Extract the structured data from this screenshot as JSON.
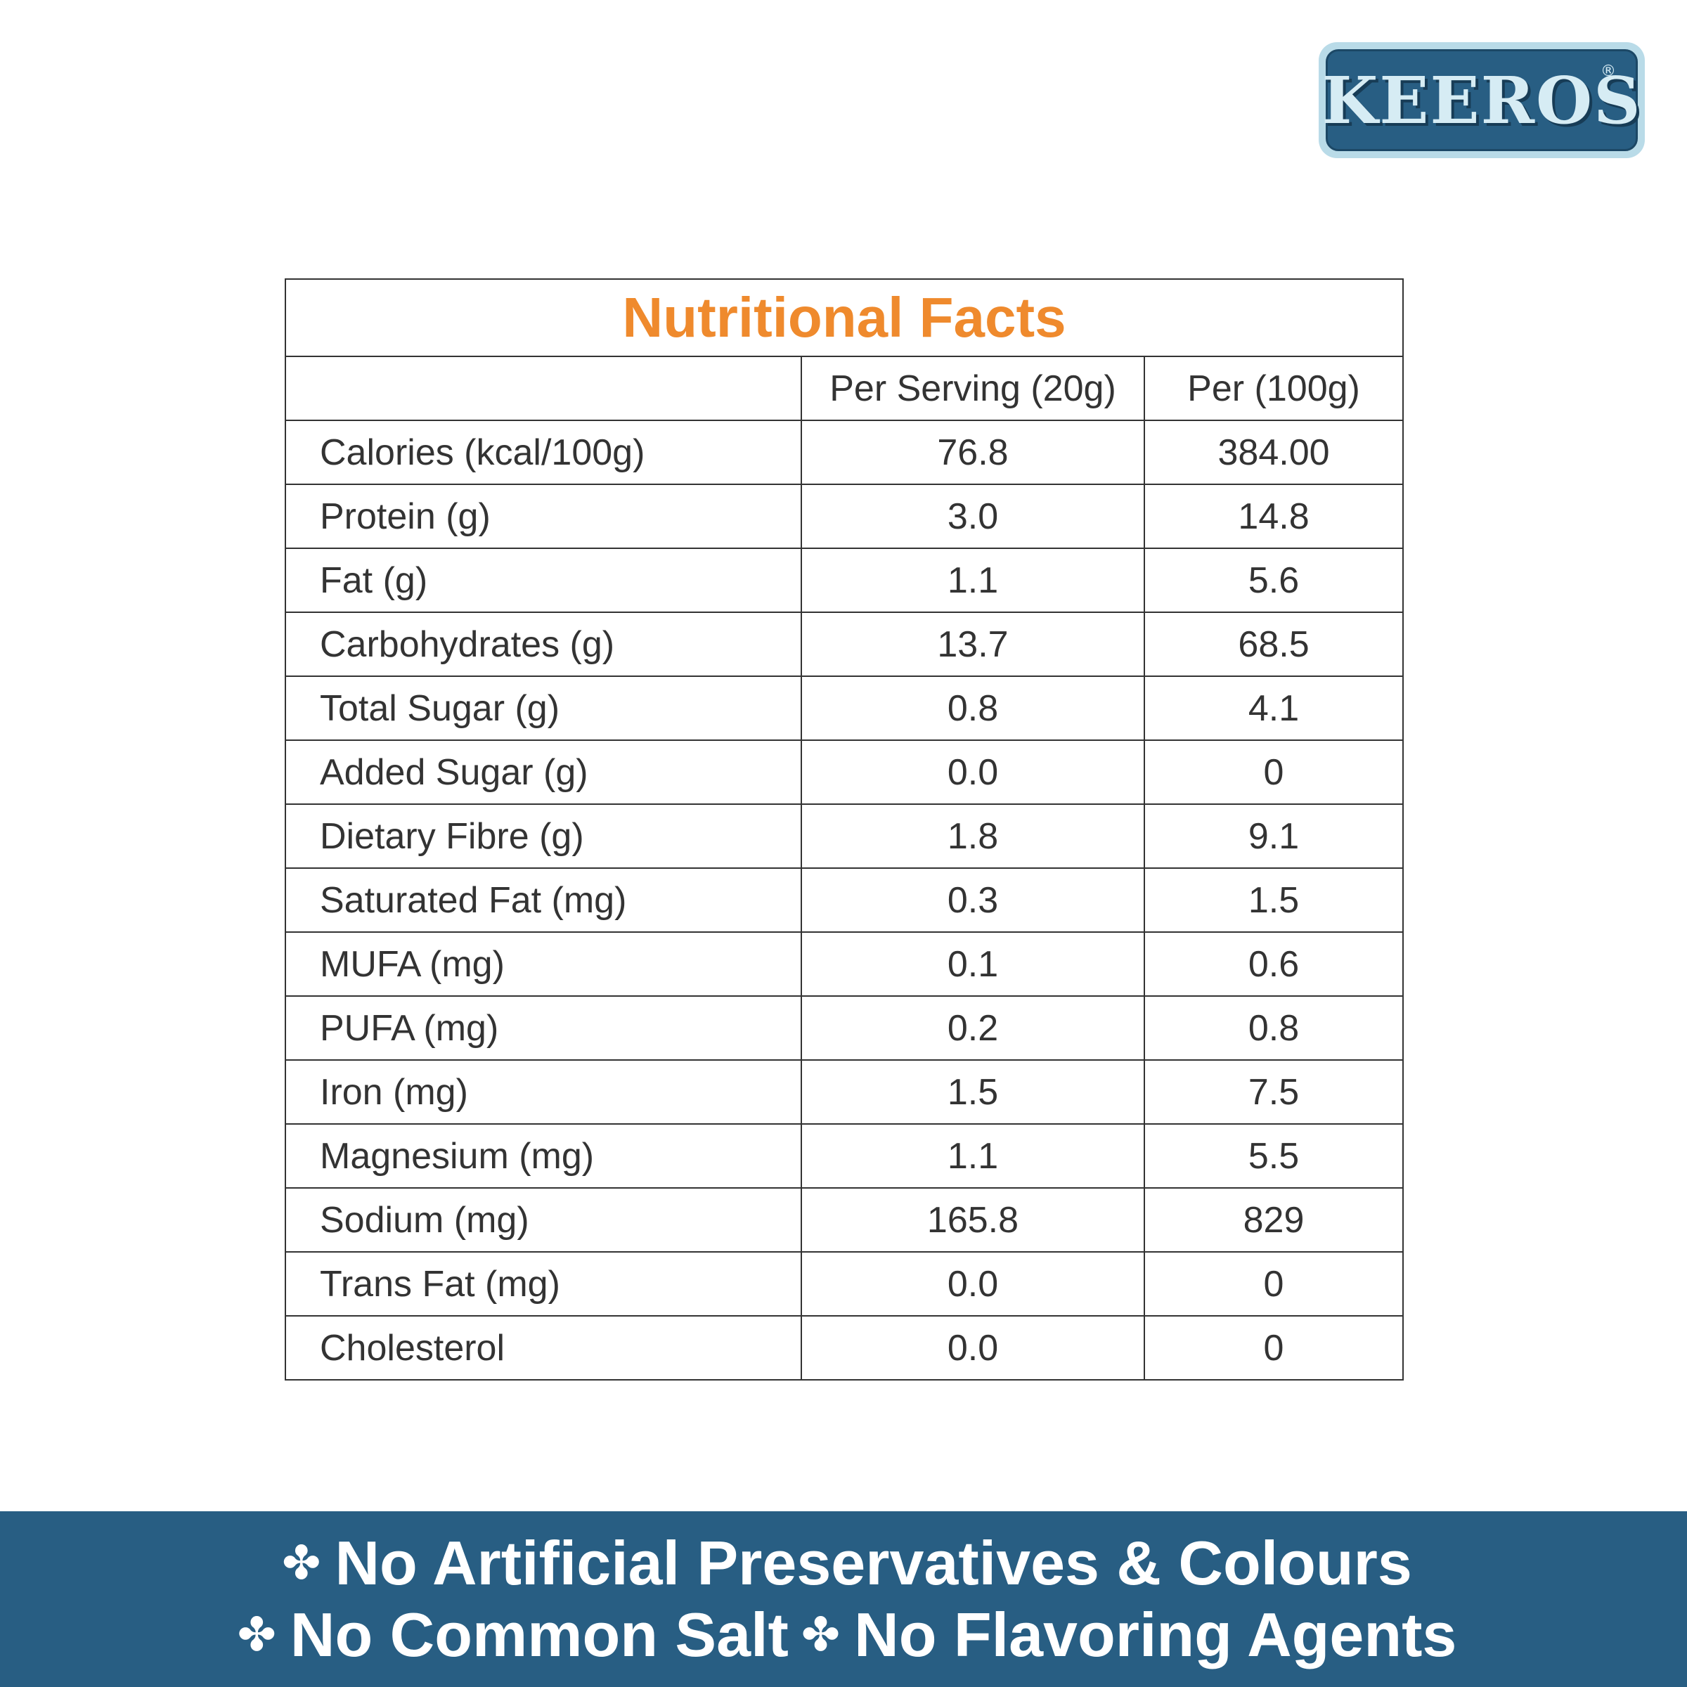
{
  "brand": {
    "logo_text": "KEEROS",
    "registered_mark": "®",
    "colors": {
      "navy": "#285e83",
      "light_blue": "#b9dbe8",
      "orange": "#ef8a2d"
    }
  },
  "table": {
    "title": "Nutritional Facts",
    "headers": [
      "",
      "Per Serving (20g)",
      "Per (100g)"
    ],
    "rows": [
      {
        "name": "Calories (kcal/100g)",
        "per_serving": "76.8",
        "per_100g": "384.00"
      },
      {
        "name": "Protein (g)",
        "per_serving": "3.0",
        "per_100g": "14.8"
      },
      {
        "name": "Fat (g)",
        "per_serving": "1.1",
        "per_100g": "5.6"
      },
      {
        "name": "Carbohydrates (g)",
        "per_serving": "13.7",
        "per_100g": "68.5"
      },
      {
        "name": "Total Sugar (g)",
        "per_serving": "0.8",
        "per_100g": "4.1"
      },
      {
        "name": "Added Sugar (g)",
        "per_serving": "0.0",
        "per_100g": "0"
      },
      {
        "name": "Dietary Fibre (g)",
        "per_serving": "1.8",
        "per_100g": "9.1"
      },
      {
        "name": "Saturated Fat (mg)",
        "per_serving": "0.3",
        "per_100g": "1.5"
      },
      {
        "name": "MUFA (mg)",
        "per_serving": "0.1",
        "per_100g": "0.6"
      },
      {
        "name": "PUFA (mg)",
        "per_serving": "0.2",
        "per_100g": "0.8"
      },
      {
        "name": "Iron (mg)",
        "per_serving": "1.5",
        "per_100g": "7.5"
      },
      {
        "name": "Magnesium (mg)",
        "per_serving": "1.1",
        "per_100g": "5.5"
      },
      {
        "name": "Sodium (mg)",
        "per_serving": "165.8",
        "per_100g": "829"
      },
      {
        "name": "Trans Fat (mg)",
        "per_serving": "0.0",
        "per_100g": "0"
      },
      {
        "name": "Cholesterol",
        "per_serving": "0.0",
        "per_100g": "0"
      }
    ]
  },
  "banner": {
    "bullet_icon": "four-petal-clover-icon",
    "claims": [
      "No Artificial Preservatives & Colours",
      "No Common Salt",
      "No Flavoring Agents"
    ]
  }
}
